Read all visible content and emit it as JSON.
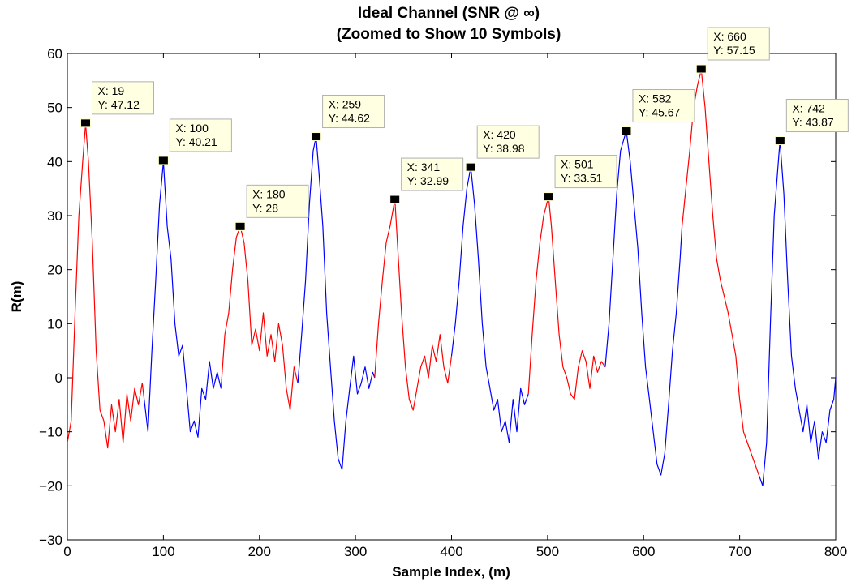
{
  "chart_data": {
    "type": "line",
    "title": [
      "Ideal Channel (SNR @ ∞)",
      "(Zoomed to Show 10 Symbols)"
    ],
    "xlabel": "Sample Index, (m)",
    "ylabel": "R(m)",
    "xlim": [
      0,
      800
    ],
    "ylim": [
      -30,
      60
    ],
    "xticks": [
      0,
      100,
      200,
      300,
      400,
      500,
      600,
      700,
      800
    ],
    "yticks": [
      -30,
      -20,
      -10,
      0,
      10,
      20,
      30,
      40,
      50,
      60
    ],
    "xtick_labels": [
      "0",
      "100",
      "200",
      "300",
      "400",
      "500",
      "600",
      "700",
      "800"
    ],
    "ytick_labels": [
      "−30",
      "−20",
      "−10",
      "0",
      "10",
      "20",
      "30",
      "40",
      "50",
      "60"
    ],
    "grid": false,
    "colors": {
      "red": "#ff0000",
      "blue": "#0000ff",
      "tip_bg": "#ffffe1",
      "tip_border": "#b0b0b0",
      "marker": "#000000"
    },
    "series": [
      {
        "color": "red",
        "x": [
          0,
          4,
          8,
          12,
          16,
          19,
          22,
          26,
          30,
          34,
          38,
          42,
          46,
          50,
          54,
          58,
          62,
          66,
          70,
          74,
          78,
          80
        ],
        "y": [
          -12,
          -8,
          12,
          30,
          40,
          47,
          40,
          25,
          5,
          -6,
          -8,
          -13,
          -5,
          -10,
          -4,
          -12,
          -3,
          -8,
          -2,
          -5,
          -1,
          -4
        ]
      },
      {
        "color": "blue",
        "x": [
          80,
          84,
          88,
          92,
          96,
          100,
          104,
          108,
          112,
          116,
          120,
          124,
          128,
          132,
          136,
          140,
          144,
          148,
          152,
          156,
          160
        ],
        "y": [
          -4,
          -10,
          5,
          18,
          32,
          40,
          28,
          22,
          10,
          4,
          6,
          -2,
          -10,
          -8,
          -11,
          -2,
          -4,
          3,
          -2,
          1,
          -2
        ]
      },
      {
        "color": "red",
        "x": [
          160,
          164,
          168,
          172,
          176,
          180,
          184,
          188,
          192,
          196,
          200,
          204,
          208,
          212,
          216,
          220,
          224,
          228,
          232,
          236,
          240
        ],
        "y": [
          -2,
          8,
          12,
          20,
          26,
          28,
          25,
          18,
          6,
          9,
          5,
          12,
          4,
          8,
          3,
          10,
          6,
          -2,
          -6,
          2,
          -1
        ]
      },
      {
        "color": "blue",
        "x": [
          240,
          244,
          248,
          252,
          256,
          259,
          262,
          266,
          270,
          274,
          278,
          282,
          286,
          290,
          294,
          298,
          302,
          306,
          310,
          314,
          318,
          320
        ],
        "y": [
          -1,
          8,
          18,
          32,
          42,
          44.6,
          38,
          28,
          12,
          2,
          -8,
          -15,
          -17,
          -8,
          -2,
          4,
          -3,
          -1,
          2,
          -2,
          1,
          0
        ]
      },
      {
        "color": "red",
        "x": [
          320,
          324,
          328,
          332,
          336,
          341,
          344,
          348,
          352,
          356,
          360,
          364,
          368,
          372,
          376,
          380,
          384,
          388,
          392,
          396,
          400
        ],
        "y": [
          0,
          10,
          18,
          25,
          28,
          33,
          24,
          12,
          2,
          -4,
          -6,
          -2,
          2,
          4,
          0,
          6,
          3,
          8,
          2,
          -1,
          4
        ]
      },
      {
        "color": "blue",
        "x": [
          400,
          404,
          408,
          412,
          416,
          420,
          424,
          428,
          432,
          436,
          440,
          444,
          448,
          452,
          456,
          460,
          464,
          468,
          472,
          476,
          480
        ],
        "y": [
          4,
          10,
          18,
          28,
          35,
          39,
          32,
          22,
          10,
          2,
          -2,
          -6,
          -4,
          -10,
          -8,
          -12,
          -4,
          -10,
          -2,
          -5,
          -3
        ]
      },
      {
        "color": "red",
        "x": [
          480,
          484,
          488,
          492,
          496,
          501,
          504,
          508,
          512,
          516,
          520,
          524,
          528,
          532,
          536,
          540,
          544,
          548,
          552,
          556,
          560
        ],
        "y": [
          -3,
          8,
          18,
          25,
          30,
          33.5,
          28,
          18,
          8,
          2,
          0,
          -3,
          -4,
          2,
          5,
          3,
          -2,
          4,
          1,
          3,
          2
        ]
      },
      {
        "color": "blue",
        "x": [
          560,
          564,
          568,
          572,
          576,
          582,
          586,
          590,
          594,
          598,
          602,
          606,
          610,
          614,
          618,
          622,
          626,
          630,
          634,
          638,
          640
        ],
        "y": [
          2,
          10,
          22,
          34,
          42,
          45.7,
          40,
          32,
          24,
          12,
          2,
          -4,
          -10,
          -16,
          -18,
          -14,
          -5,
          5,
          12,
          22,
          28
        ]
      },
      {
        "color": "red",
        "x": [
          640,
          644,
          648,
          652,
          656,
          660,
          664,
          668,
          672,
          676,
          680,
          684,
          688,
          692,
          696,
          700,
          704,
          708,
          712,
          716,
          720
        ],
        "y": [
          28,
          35,
          42,
          50,
          54,
          57,
          50,
          40,
          30,
          22,
          18,
          15,
          12,
          8,
          4,
          -4,
          -10,
          -12,
          -14,
          -16,
          -18
        ]
      },
      {
        "color": "blue",
        "x": [
          720,
          724,
          728,
          732,
          736,
          742,
          746,
          750,
          754,
          758,
          762,
          766,
          770,
          774,
          778,
          782,
          786,
          790,
          794,
          798,
          800
        ],
        "y": [
          -18,
          -20,
          -12,
          10,
          30,
          43.9,
          34,
          18,
          4,
          -2,
          -6,
          -10,
          -5,
          -12,
          -8,
          -15,
          -10,
          -12,
          -6,
          -4,
          0
        ]
      }
    ],
    "datatips": [
      {
        "x": 19,
        "y": 47.12,
        "xtext": "X: 19",
        "ytext": "Y: 47.12"
      },
      {
        "x": 100,
        "y": 40.21,
        "xtext": "X: 100",
        "ytext": "Y: 40.21"
      },
      {
        "x": 180,
        "y": 28,
        "xtext": "X: 180",
        "ytext": "Y: 28"
      },
      {
        "x": 259,
        "y": 44.62,
        "xtext": "X: 259",
        "ytext": "Y: 44.62"
      },
      {
        "x": 341,
        "y": 32.99,
        "xtext": "X: 341",
        "ytext": "Y: 32.99"
      },
      {
        "x": 420,
        "y": 38.98,
        "xtext": "X: 420",
        "ytext": "Y: 38.98"
      },
      {
        "x": 501,
        "y": 33.51,
        "xtext": "X: 501",
        "ytext": "Y: 33.51"
      },
      {
        "x": 582,
        "y": 45.67,
        "xtext": "X: 582",
        "ytext": "Y: 45.67"
      },
      {
        "x": 660,
        "y": 57.15,
        "xtext": "X: 660",
        "ytext": "Y: 57.15"
      },
      {
        "x": 742,
        "y": 43.87,
        "xtext": "X: 742",
        "ytext": "Y: 43.87"
      }
    ]
  }
}
